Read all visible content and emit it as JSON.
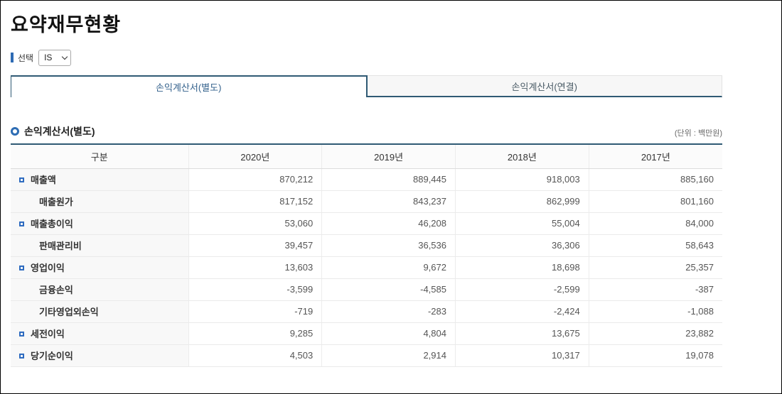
{
  "page": {
    "title": "요약재무현황"
  },
  "filter": {
    "label": "선택",
    "selected": "IS"
  },
  "tabs": [
    {
      "label": "손익계산서(별도)",
      "active": true
    },
    {
      "label": "손익계산서(연결)",
      "active": false
    }
  ],
  "section": {
    "title": "손익계산서(별도)",
    "unit_note": "(단위 : 백만원)"
  },
  "table": {
    "headers": [
      "구분",
      "2020년",
      "2019년",
      "2018년",
      "2017년"
    ],
    "rows": [
      {
        "label": "매출액",
        "bullet": true,
        "values": [
          "870,212",
          "889,445",
          "918,003",
          "885,160"
        ]
      },
      {
        "label": "매출원가",
        "bullet": false,
        "values": [
          "817,152",
          "843,237",
          "862,999",
          "801,160"
        ]
      },
      {
        "label": "매출총이익",
        "bullet": true,
        "values": [
          "53,060",
          "46,208",
          "55,004",
          "84,000"
        ]
      },
      {
        "label": "판매관리비",
        "bullet": false,
        "values": [
          "39,457",
          "36,536",
          "36,306",
          "58,643"
        ]
      },
      {
        "label": "영업이익",
        "bullet": true,
        "values": [
          "13,603",
          "9,672",
          "18,698",
          "25,357"
        ]
      },
      {
        "label": "금융손익",
        "bullet": false,
        "values": [
          "-3,599",
          "-4,585",
          "-2,599",
          "-387"
        ]
      },
      {
        "label": "기타영업외손익",
        "bullet": false,
        "values": [
          "-719",
          "-283",
          "-2,424",
          "-1,088"
        ]
      },
      {
        "label": "세전이익",
        "bullet": true,
        "values": [
          "9,285",
          "4,804",
          "13,675",
          "23,882"
        ]
      },
      {
        "label": "당기순이익",
        "bullet": true,
        "values": [
          "4,503",
          "2,914",
          "10,317",
          "19,078"
        ]
      }
    ]
  },
  "colors": {
    "accent_blue": "#2e6bb4",
    "bullet_blue": "#2e6bc0",
    "tab_border_teal": "#2f5a74",
    "active_tab_text": "#33618c",
    "label_cell_bg": "#f8f8f8"
  }
}
